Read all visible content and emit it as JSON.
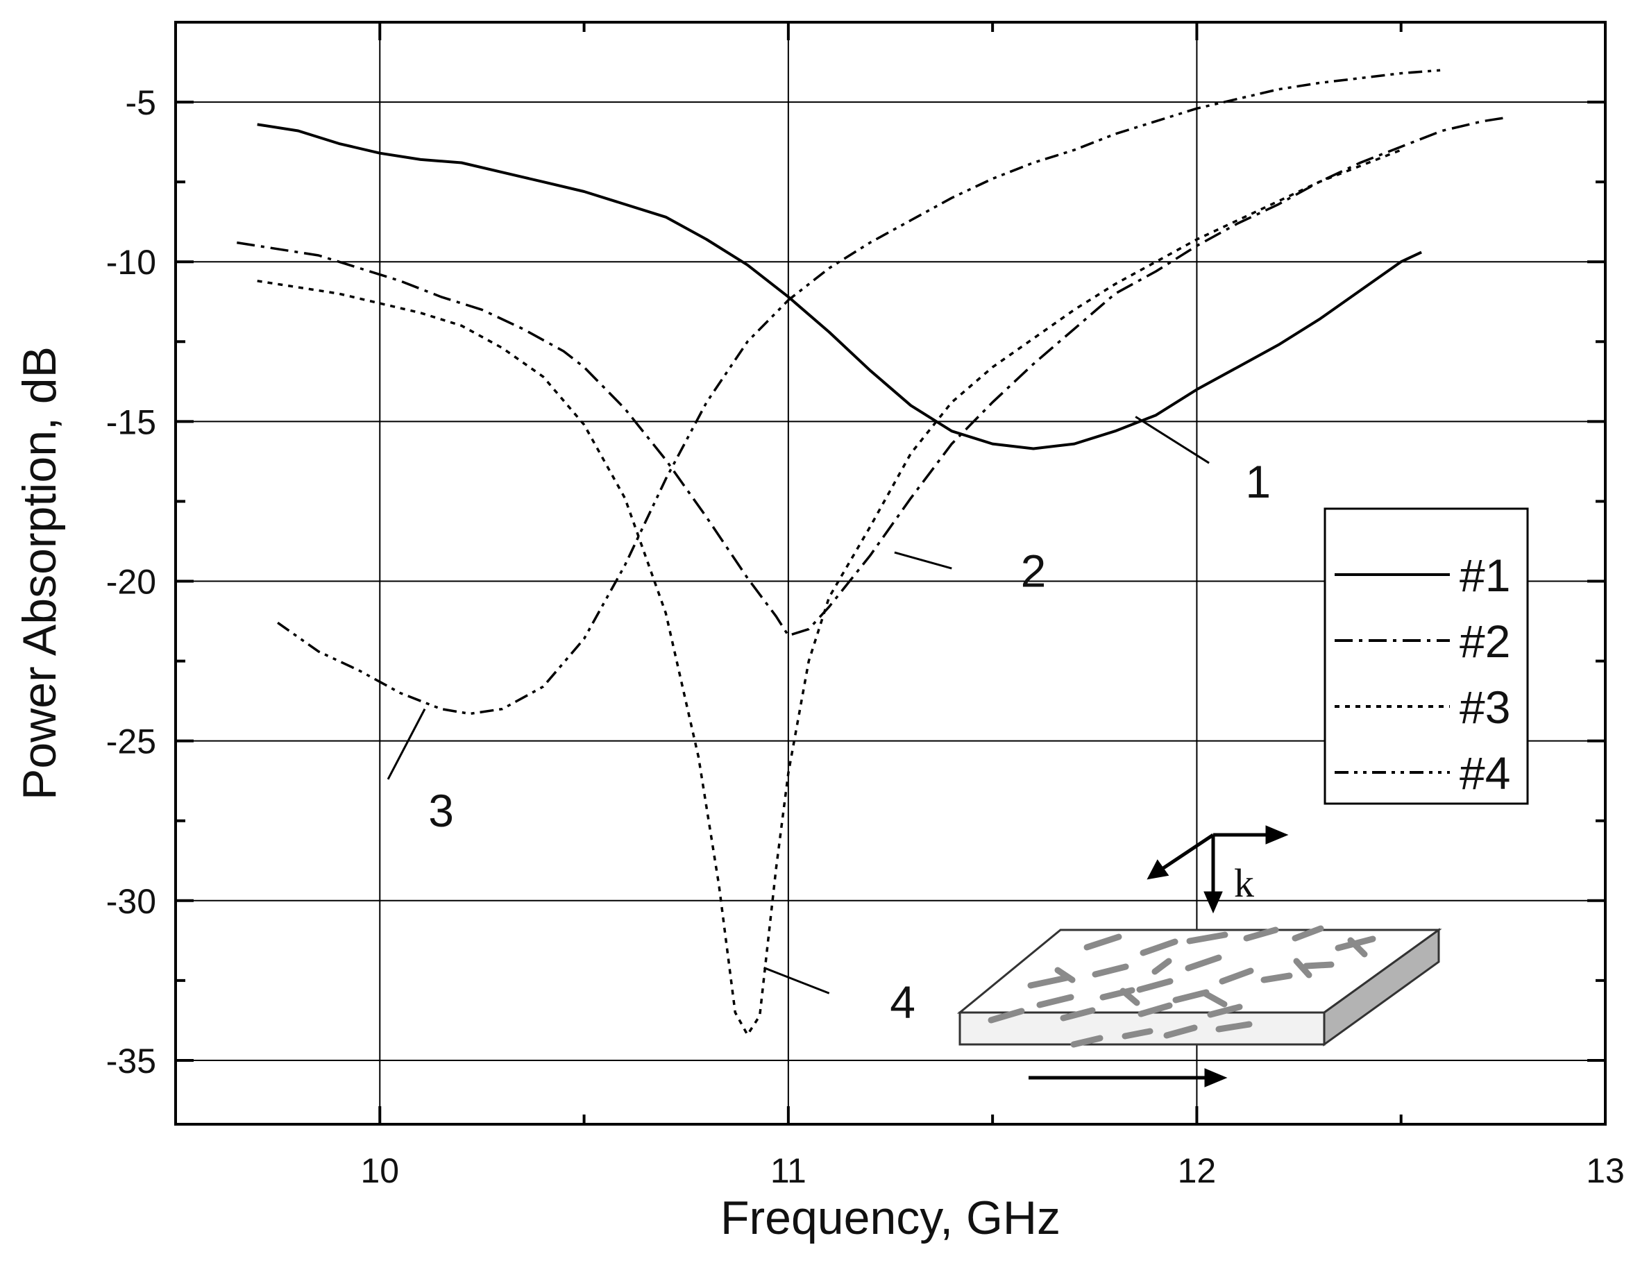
{
  "chart_data": {
    "type": "line",
    "xlabel": "Frequency, GHz",
    "ylabel": "Power Absorption, dB",
    "xlim": [
      9.5,
      13
    ],
    "ylim": [
      -37,
      -2.5
    ],
    "xticks": [
      10,
      11,
      12,
      13
    ],
    "yticks": [
      -5,
      -10,
      -15,
      -20,
      -25,
      -30,
      -35
    ],
    "xtick_labels": [
      "10",
      "11",
      "12",
      "13"
    ],
    "ytick_labels": [
      "-5",
      "-10",
      "-15",
      "-20",
      "-25",
      "-30",
      "-35"
    ],
    "grid": true,
    "legend_position": "right",
    "series": [
      {
        "name": "#1",
        "label": "1",
        "dash": "solid",
        "points": [
          [
            9.7,
            -5.7
          ],
          [
            9.8,
            -5.9
          ],
          [
            9.9,
            -6.3
          ],
          [
            10.0,
            -6.6
          ],
          [
            10.1,
            -6.8
          ],
          [
            10.2,
            -6.9
          ],
          [
            10.3,
            -7.2
          ],
          [
            10.4,
            -7.5
          ],
          [
            10.5,
            -7.8
          ],
          [
            10.6,
            -8.2
          ],
          [
            10.7,
            -8.6
          ],
          [
            10.8,
            -9.3
          ],
          [
            10.9,
            -10.1
          ],
          [
            11.0,
            -11.1
          ],
          [
            11.1,
            -12.2
          ],
          [
            11.2,
            -13.4
          ],
          [
            11.3,
            -14.5
          ],
          [
            11.4,
            -15.3
          ],
          [
            11.5,
            -15.7
          ],
          [
            11.6,
            -15.85
          ],
          [
            11.7,
            -15.7
          ],
          [
            11.8,
            -15.3
          ],
          [
            11.9,
            -14.8
          ],
          [
            12.0,
            -14.0
          ],
          [
            12.1,
            -13.3
          ],
          [
            12.2,
            -12.6
          ],
          [
            12.3,
            -11.8
          ],
          [
            12.4,
            -10.9
          ],
          [
            12.5,
            -10.0
          ],
          [
            12.55,
            -9.7
          ]
        ]
      },
      {
        "name": "#2",
        "label": "2",
        "dash": "dash-dot",
        "points": [
          [
            9.65,
            -9.4
          ],
          [
            9.75,
            -9.6
          ],
          [
            9.85,
            -9.8
          ],
          [
            9.95,
            -10.2
          ],
          [
            10.05,
            -10.6
          ],
          [
            10.15,
            -11.1
          ],
          [
            10.25,
            -11.5
          ],
          [
            10.35,
            -12.1
          ],
          [
            10.45,
            -12.8
          ],
          [
            10.5,
            -13.3
          ],
          [
            10.6,
            -14.6
          ],
          [
            10.7,
            -16.2
          ],
          [
            10.8,
            -18.0
          ],
          [
            10.9,
            -19.9
          ],
          [
            10.97,
            -21.1
          ],
          [
            11.0,
            -21.7
          ],
          [
            11.05,
            -21.5
          ],
          [
            11.1,
            -20.8
          ],
          [
            11.2,
            -19.2
          ],
          [
            11.3,
            -17.4
          ],
          [
            11.4,
            -15.7
          ],
          [
            11.5,
            -14.4
          ],
          [
            11.6,
            -13.2
          ],
          [
            11.7,
            -12.1
          ],
          [
            11.8,
            -11.0
          ],
          [
            11.9,
            -10.3
          ],
          [
            12.0,
            -9.5
          ],
          [
            12.1,
            -8.8
          ],
          [
            12.2,
            -8.2
          ],
          [
            12.3,
            -7.5
          ],
          [
            12.4,
            -6.9
          ],
          [
            12.5,
            -6.4
          ],
          [
            12.6,
            -5.9
          ],
          [
            12.7,
            -5.6
          ],
          [
            12.75,
            -5.5
          ]
        ]
      },
      {
        "name": "#3",
        "label": "4",
        "dash": "dotted",
        "points": [
          [
            9.7,
            -10.6
          ],
          [
            9.8,
            -10.8
          ],
          [
            9.9,
            -11.0
          ],
          [
            10.0,
            -11.3
          ],
          [
            10.1,
            -11.6
          ],
          [
            10.2,
            -12.0
          ],
          [
            10.3,
            -12.7
          ],
          [
            10.4,
            -13.6
          ],
          [
            10.5,
            -15.1
          ],
          [
            10.6,
            -17.4
          ],
          [
            10.7,
            -21.0
          ],
          [
            10.78,
            -25.5
          ],
          [
            10.83,
            -29.5
          ],
          [
            10.87,
            -33.5
          ],
          [
            10.9,
            -34.2
          ],
          [
            10.93,
            -33.6
          ],
          [
            10.97,
            -29.0
          ],
          [
            11.0,
            -26.0
          ],
          [
            11.05,
            -22.5
          ],
          [
            11.1,
            -20.5
          ],
          [
            11.2,
            -18.3
          ],
          [
            11.3,
            -16.0
          ],
          [
            11.4,
            -14.4
          ],
          [
            11.5,
            -13.3
          ],
          [
            11.6,
            -12.4
          ],
          [
            11.7,
            -11.5
          ],
          [
            11.8,
            -10.7
          ],
          [
            11.9,
            -10.0
          ],
          [
            12.0,
            -9.3
          ],
          [
            12.1,
            -8.7
          ],
          [
            12.2,
            -8.1
          ],
          [
            12.3,
            -7.5
          ],
          [
            12.4,
            -7.0
          ],
          [
            12.5,
            -6.5
          ]
        ]
      },
      {
        "name": "#4",
        "label": "3",
        "dash": "dash-dot-dot",
        "points": [
          [
            9.75,
            -21.3
          ],
          [
            9.85,
            -22.2
          ],
          [
            9.95,
            -22.8
          ],
          [
            10.05,
            -23.5
          ],
          [
            10.15,
            -24.0
          ],
          [
            10.22,
            -24.15
          ],
          [
            10.3,
            -24.0
          ],
          [
            10.4,
            -23.3
          ],
          [
            10.5,
            -21.8
          ],
          [
            10.6,
            -19.5
          ],
          [
            10.7,
            -16.8
          ],
          [
            10.8,
            -14.4
          ],
          [
            10.9,
            -12.5
          ],
          [
            11.0,
            -11.2
          ],
          [
            11.1,
            -10.2
          ],
          [
            11.2,
            -9.4
          ],
          [
            11.3,
            -8.7
          ],
          [
            11.4,
            -8.0
          ],
          [
            11.5,
            -7.4
          ],
          [
            11.6,
            -6.9
          ],
          [
            11.7,
            -6.5
          ],
          [
            11.8,
            -6.0
          ],
          [
            11.9,
            -5.6
          ],
          [
            12.0,
            -5.2
          ],
          [
            12.1,
            -4.9
          ],
          [
            12.2,
            -4.6
          ],
          [
            12.3,
            -4.4
          ],
          [
            12.4,
            -4.25
          ],
          [
            12.5,
            -4.1
          ],
          [
            12.6,
            -4.0
          ]
        ]
      }
    ],
    "callouts": [
      {
        "label": "1",
        "anchor": [
          11.85,
          -14.85
        ],
        "line_end": [
          12.03,
          -16.3
        ],
        "text_at": [
          12.15,
          -17.0
        ]
      },
      {
        "label": "2",
        "anchor": [
          11.26,
          -19.1
        ],
        "line_end": [
          11.4,
          -19.6
        ],
        "text_at": [
          11.6,
          -19.8
        ]
      },
      {
        "label": "3",
        "anchor": [
          10.11,
          -24.0
        ],
        "line_end": [
          10.02,
          -26.2
        ],
        "text_at": [
          10.15,
          -27.3
        ]
      },
      {
        "label": "4",
        "anchor": [
          10.94,
          -32.1
        ],
        "line_end": [
          11.1,
          -32.9
        ],
        "text_at": [
          11.28,
          -33.3
        ]
      }
    ],
    "legend": {
      "entries": [
        {
          "label": "#1",
          "dash": "solid"
        },
        {
          "label": "#2",
          "dash": "dash-dot"
        },
        {
          "label": "#3",
          "dash": "dotted"
        },
        {
          "label": "#4",
          "dash": "dash-dot-dot"
        }
      ]
    },
    "inset": {
      "wave_vector_label": "k"
    }
  }
}
